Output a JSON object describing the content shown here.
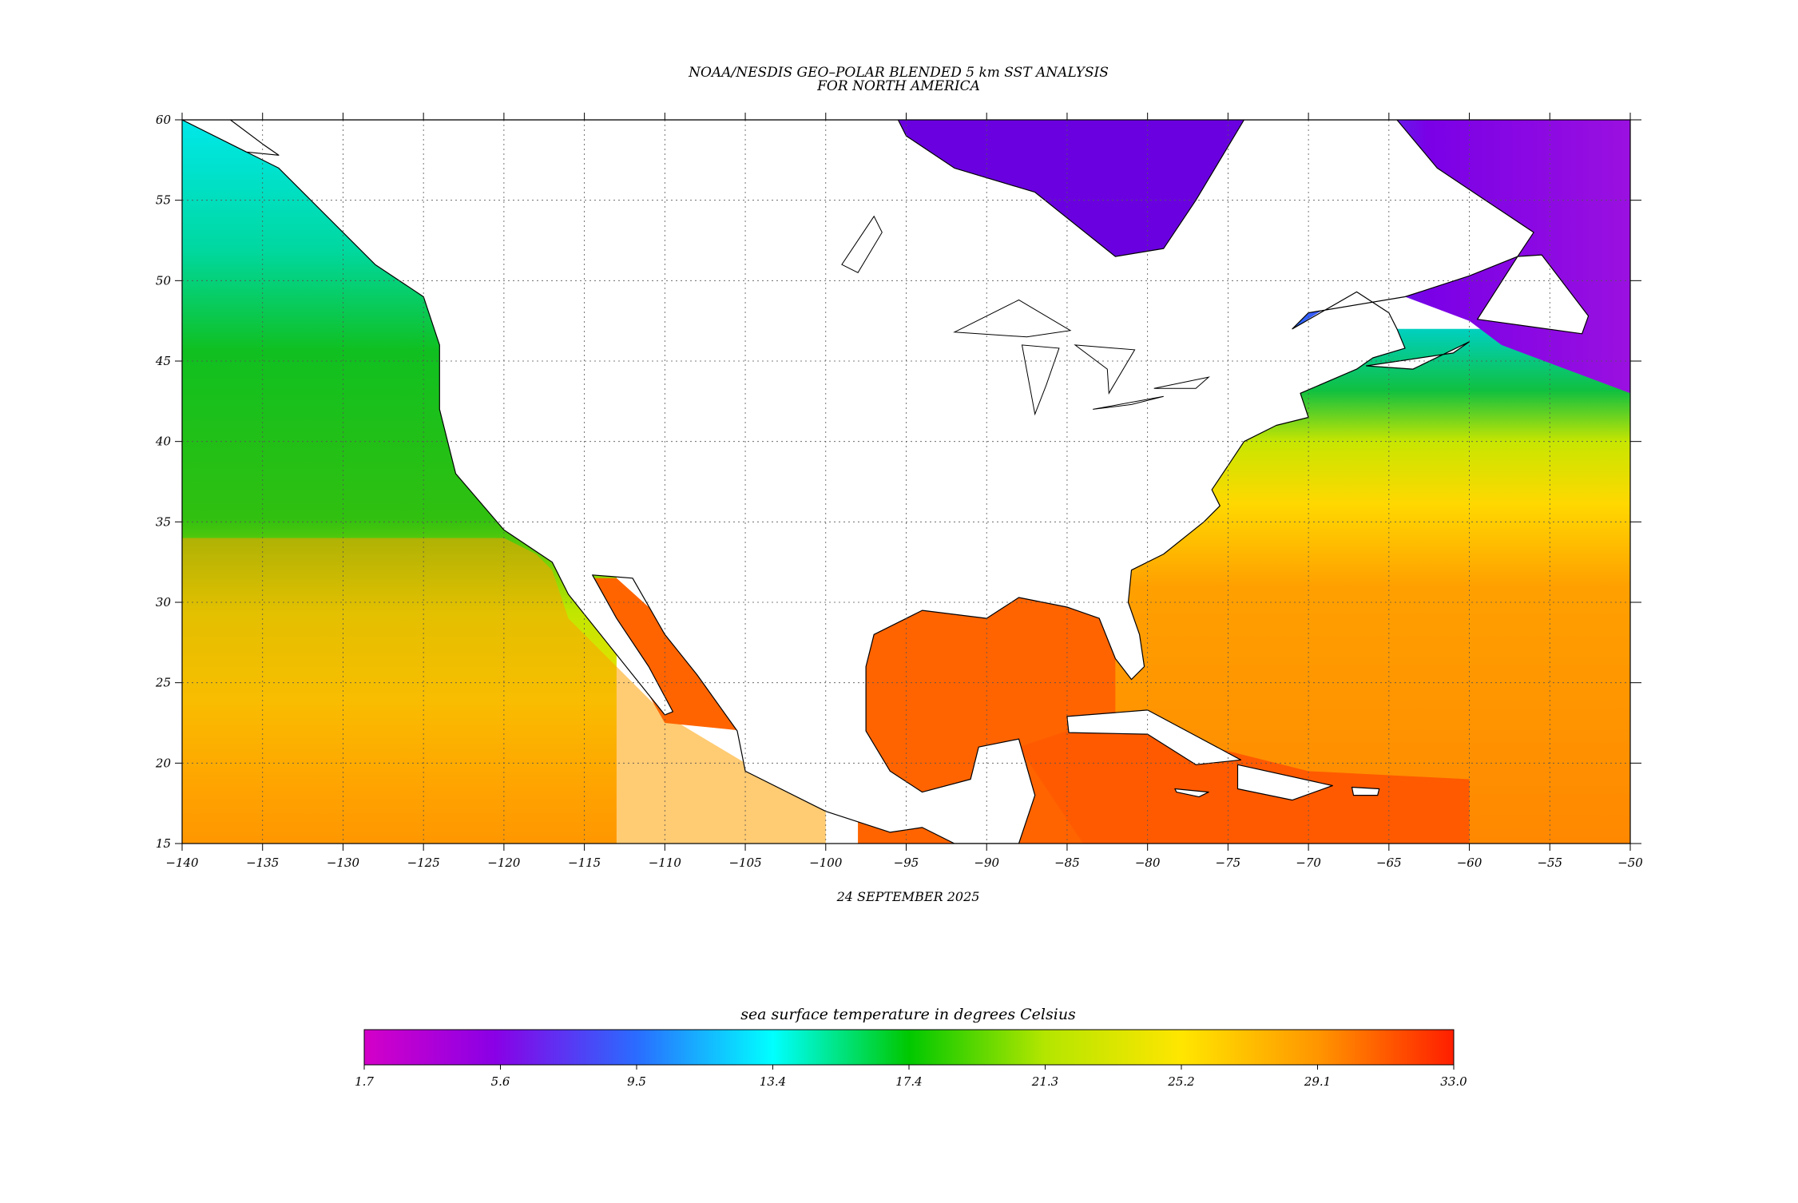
{
  "title_line1": "NOAA/NESDIS GEO–POLAR BLENDED 5 km SST ANALYSIS",
  "title_line2": "FOR NORTH AMERICA",
  "date_label": "24 SEPTEMBER 2025",
  "map": {
    "lon_range": [
      -140,
      -50
    ],
    "lat_range": [
      15,
      60
    ],
    "lon_ticks": [
      -140,
      -135,
      -130,
      -125,
      -120,
      -115,
      -110,
      -105,
      -100,
      -95,
      -90,
      -85,
      -80,
      -75,
      -70,
      -65,
      -60,
      -55,
      -50
    ],
    "lat_ticks": [
      15,
      20,
      25,
      30,
      35,
      40,
      45,
      50,
      55,
      60
    ],
    "lon_tick_labels": [
      "−140",
      "−135",
      "−130",
      "−125",
      "−120",
      "−115",
      "−110",
      "−105",
      "−100",
      "−95",
      "−90",
      "−85",
      "−80",
      "−75",
      "−70",
      "−65",
      "−60",
      "−55",
      "−50"
    ],
    "lat_tick_labels": [
      "15",
      "20",
      "25",
      "30",
      "35",
      "40",
      "45",
      "50",
      "55",
      "60"
    ],
    "grid": true,
    "land_color": "#ffffff",
    "coast_color": "#000000"
  },
  "colorbar": {
    "title": "sea surface temperature in degrees Celsius",
    "min": 1.7,
    "max": 33.0,
    "tick_labels": [
      "1.7",
      "5.6",
      "9.5",
      "13.4",
      "17.4",
      "21.3",
      "25.2",
      "29.1",
      "33.0"
    ],
    "stops": [
      {
        "offset": 0.0,
        "color": "#d400c8"
      },
      {
        "offset": 0.12,
        "color": "#8a00e6"
      },
      {
        "offset": 0.25,
        "color": "#2a6cff"
      },
      {
        "offset": 0.375,
        "color": "#00ffff"
      },
      {
        "offset": 0.5,
        "color": "#00c800"
      },
      {
        "offset": 0.625,
        "color": "#b4e600"
      },
      {
        "offset": 0.75,
        "color": "#ffe600"
      },
      {
        "offset": 0.875,
        "color": "#ff9600"
      },
      {
        "offset": 1.0,
        "color": "#ff1e00"
      }
    ]
  },
  "colors": {
    "pacific_north": "#00e6e6",
    "pacific_mid": "#10c020",
    "pacific_south": "#e6e600",
    "pacific_tropic": "#ffa000",
    "gulf": "#ff6400",
    "caribbean": "#ff5a00",
    "atlantic_north": "#00c8a0",
    "atlantic_mid": "#ffe000",
    "atlantic_south": "#ff9000",
    "hudson_bay": "#6a00e0",
    "labrador": "#9a00e6"
  }
}
